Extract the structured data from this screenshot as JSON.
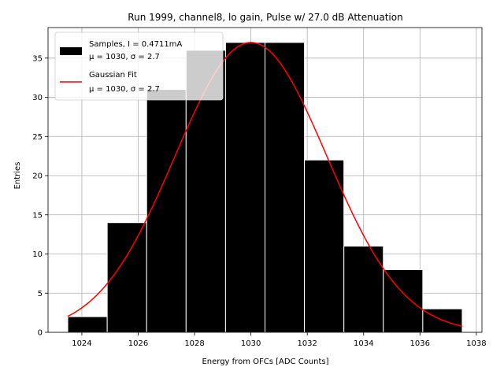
{
  "chart_data": {
    "type": "bar",
    "title": "Run 1999, channel8, lo gain, Pulse w/ 27.0 dB Attenuation",
    "xlabel": "Energy from OFCs [ADC Counts]",
    "ylabel": "Entries",
    "xlim": [
      1022.8,
      1038.2
    ],
    "ylim": [
      0,
      38.9
    ],
    "grid": true,
    "legend_position": "top-left",
    "x_ticks": [
      1024,
      1026,
      1028,
      1030,
      1032,
      1034,
      1036,
      1038
    ],
    "y_ticks": [
      0,
      5,
      10,
      15,
      20,
      25,
      30,
      35
    ],
    "bins": [
      {
        "left": 1023.5,
        "right": 1024.9,
        "count": 2
      },
      {
        "left": 1024.9,
        "right": 1026.3,
        "count": 14
      },
      {
        "left": 1026.3,
        "right": 1027.7,
        "count": 31
      },
      {
        "left": 1027.7,
        "right": 1029.1,
        "count": 36
      },
      {
        "left": 1029.1,
        "right": 1030.5,
        "count": 37
      },
      {
        "left": 1030.5,
        "right": 1031.9,
        "count": 37
      },
      {
        "left": 1031.9,
        "right": 1033.3,
        "count": 22
      },
      {
        "left": 1033.3,
        "right": 1034.7,
        "count": 11
      },
      {
        "left": 1034.7,
        "right": 1036.1,
        "count": 8
      },
      {
        "left": 1036.1,
        "right": 1037.5,
        "count": 3
      }
    ],
    "fit": {
      "mu": 1030.0,
      "sigma": 2.7,
      "amplitude": 37.0,
      "x_range": [
        1023.5,
        1037.5
      ]
    },
    "series": [
      {
        "name": "Samples, I = 0.4711mA",
        "stats": "μ = 1030, σ = 2.7",
        "color": "#000000",
        "kind": "bar"
      },
      {
        "name": "Gaussian Fit",
        "stats": "μ = 1030, σ = 2.7",
        "color": "#ff0000",
        "kind": "line"
      }
    ]
  }
}
